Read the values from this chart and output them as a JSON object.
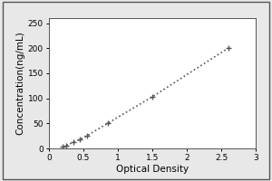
{
  "x_data": [
    0.2,
    0.25,
    0.35,
    0.45,
    0.55,
    0.85,
    1.5,
    2.6
  ],
  "y_data": [
    3,
    6,
    12,
    18,
    25,
    50,
    103,
    200
  ],
  "xlabel": "Optical Density",
  "ylabel": "Concentration(ng/mL)",
  "xlim": [
    0,
    3
  ],
  "ylim": [
    0,
    260
  ],
  "xticks": [
    0,
    0.5,
    1.0,
    1.5,
    2.0,
    2.5,
    3.0
  ],
  "yticks": [
    0,
    50,
    100,
    150,
    200,
    250
  ],
  "line_color": "#555555",
  "marker": "+",
  "marker_size": 5,
  "marker_edge_width": 1.0,
  "line_style": ":",
  "line_width": 1.2,
  "bg_color": "#ffffff",
  "outer_bg": "#e8e8e8",
  "tick_label_fontsize": 6.5,
  "axis_label_fontsize": 7.5,
  "figsize": [
    3.0,
    2.0
  ],
  "dpi": 100
}
